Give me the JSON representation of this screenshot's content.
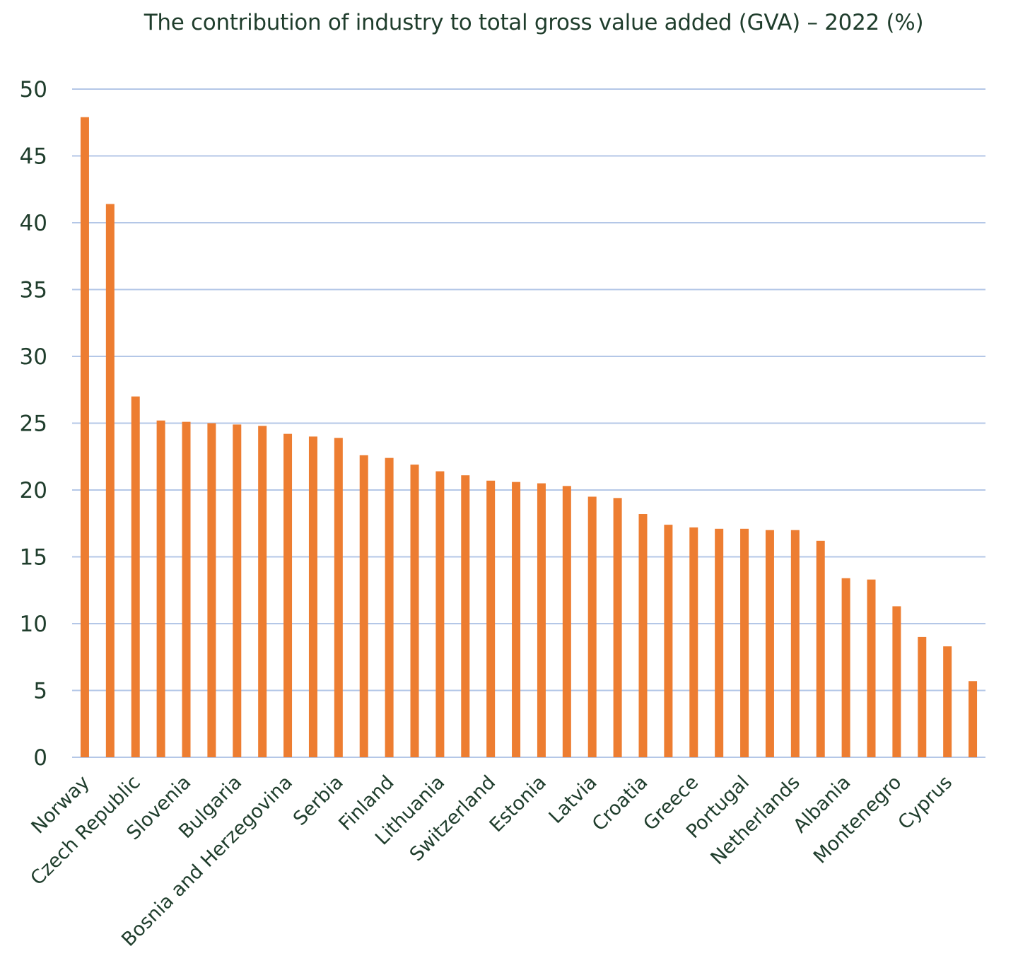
{
  "chart_data": {
    "type": "bar",
    "title": "The contribution of industry to total gross value added (GVA) – 2022 (%)",
    "xlabel": "",
    "ylabel": "",
    "ylim": [
      0,
      50
    ],
    "yticks": [
      "0",
      "5",
      "10",
      "15",
      "20",
      "25",
      "30",
      "35",
      "40",
      "45",
      "50"
    ],
    "grid": true,
    "bar_color": "#ED7D31",
    "grid_color": "#B4C7E7",
    "categories": [
      "Norway",
      "",
      "Czech Republic",
      "",
      "Slovenia",
      "",
      "Bulgaria",
      "",
      "Bosnia and Herzegovina",
      "",
      "Serbia",
      "",
      "Finland",
      "",
      "Lithuania",
      "",
      "Switzerland",
      "",
      "Estonia",
      "",
      "Latvia",
      "",
      "Croatia",
      "",
      "Greece",
      "",
      "Portugal",
      "",
      "Netherlands",
      "",
      "Albania",
      "",
      "Montenegro",
      "",
      "Cyprus",
      ""
    ],
    "values": [
      47.9,
      41.4,
      27.0,
      25.2,
      25.1,
      25.0,
      24.9,
      24.8,
      24.2,
      24.0,
      23.9,
      22.6,
      22.4,
      21.9,
      21.4,
      21.1,
      20.7,
      20.6,
      20.5,
      20.3,
      19.5,
      19.4,
      18.2,
      17.4,
      17.2,
      17.1,
      17.1,
      17.0,
      17.0,
      16.2,
      13.4,
      13.3,
      11.3,
      9.0,
      8.3,
      5.7
    ]
  }
}
